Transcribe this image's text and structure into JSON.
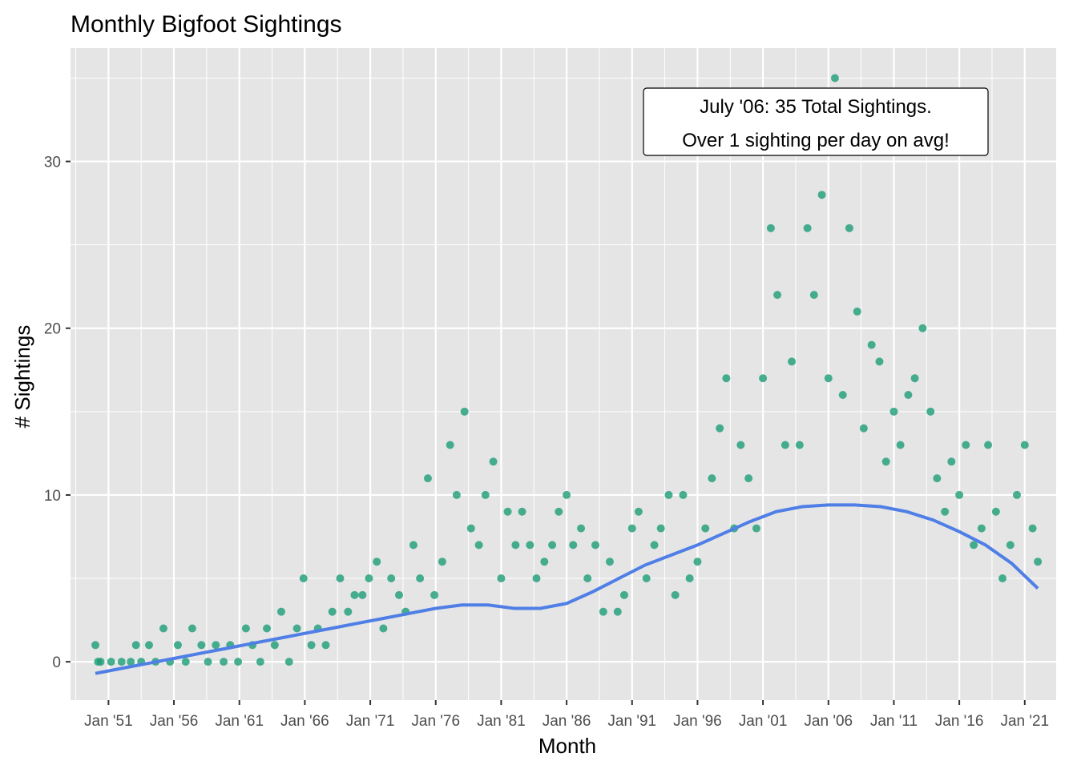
{
  "chart_data": {
    "type": "scatter",
    "title": "Monthly Bigfoot Sightings",
    "xlabel": "Month",
    "ylabel": "# Sightings",
    "xlim": [
      1948.1,
      2023.4
    ],
    "ylim": [
      -2.3,
      36.8
    ],
    "x_ticks": [
      {
        "x": 1951,
        "label": "Jan '51"
      },
      {
        "x": 1956,
        "label": "Jan '56"
      },
      {
        "x": 1961,
        "label": "Jan '61"
      },
      {
        "x": 1966,
        "label": "Jan '66"
      },
      {
        "x": 1971,
        "label": "Jan '71"
      },
      {
        "x": 1976,
        "label": "Jan '76"
      },
      {
        "x": 1981,
        "label": "Jan '81"
      },
      {
        "x": 1986,
        "label": "Jan '86"
      },
      {
        "x": 1991,
        "label": "Jan '91"
      },
      {
        "x": 1996,
        "label": "Jan '96"
      },
      {
        "x": 2001,
        "label": "Jan '01"
      },
      {
        "x": 2006,
        "label": "Jan '06"
      },
      {
        "x": 2011,
        "label": "Jan '11"
      },
      {
        "x": 2016,
        "label": "Jan '16"
      },
      {
        "x": 2021,
        "label": "Jan '21"
      }
    ],
    "y_ticks": [
      0,
      10,
      20,
      30
    ],
    "grid": true,
    "colors": {
      "points": "#1b9e77",
      "smooth": "#4f7fe6",
      "panel": "#e5e5e5",
      "grid": "#ffffff"
    },
    "annotation": {
      "lines": [
        "July '06: 35 Total Sightings.",
        "Over 1 sighting per day on avg!"
      ]
    },
    "smooth_line": {
      "x": [
        1950,
        1952,
        1954,
        1956,
        1958,
        1960,
        1962,
        1964,
        1966,
        1968,
        1970,
        1972,
        1974,
        1976,
        1978,
        1980,
        1982,
        1984,
        1986,
        1988,
        1990,
        1992,
        1994,
        1996,
        1998,
        2000,
        2002,
        2004,
        2006,
        2008,
        2010,
        2012,
        2014,
        2016,
        2018,
        2020,
        2022
      ],
      "y": [
        -0.7,
        -0.4,
        -0.1,
        0.2,
        0.5,
        0.8,
        1.1,
        1.4,
        1.7,
        2.0,
        2.3,
        2.6,
        2.9,
        3.2,
        3.4,
        3.4,
        3.2,
        3.2,
        3.5,
        4.2,
        5.0,
        5.8,
        6.4,
        7.0,
        7.7,
        8.4,
        9.0,
        9.3,
        9.4,
        9.4,
        9.3,
        9.0,
        8.5,
        7.8,
        7.0,
        5.9,
        4.4
      ]
    },
    "series": [
      {
        "x": [
          1950.0,
          1950.2,
          1950.4,
          1951.2,
          1952.0,
          1952.7,
          1953.1,
          1953.5,
          1954.1,
          1954.6,
          1955.2,
          1955.7,
          1956.3,
          1956.9,
          1957.4,
          1958.1,
          1958.6,
          1959.2,
          1959.8,
          1960.3,
          1960.9,
          1961.5,
          1962.0,
          1962.6,
          1963.1,
          1963.7,
          1964.2,
          1964.8,
          1965.4,
          1965.9,
          1966.5,
          1967.0,
          1967.6,
          1968.1,
          1968.7,
          1969.3,
          1969.8,
          1970.4,
          1970.9,
          1971.5,
          1972.0,
          1972.6,
          1973.2,
          1973.7,
          1974.3,
          1974.8,
          1975.4,
          1975.9,
          1976.5,
          1977.1,
          1977.6,
          1978.2,
          1978.7,
          1979.3,
          1979.8,
          1980.4,
          1981.0,
          1981.5,
          1982.1,
          1982.6,
          1983.2,
          1983.7,
          1984.3,
          1984.9,
          1985.4,
          1986.0,
          1986.5,
          1987.1,
          1987.6,
          1988.2,
          1988.8,
          1989.3,
          1989.9,
          1990.4,
          1991.0,
          1991.5,
          1992.1,
          1992.7,
          1993.2,
          1993.8,
          1994.3,
          1994.9,
          1995.4,
          1996.0,
          1996.6,
          1997.1,
          1997.7,
          1998.2,
          1998.8,
          1999.3,
          1999.9,
          2000.5,
          2001.0,
          2001.6,
          2002.1,
          2002.7,
          2003.2,
          2003.8,
          2004.4,
          2004.9,
          2005.5,
          2006.0,
          2006.5,
          2007.1,
          2007.6,
          2008.2,
          2008.7,
          2009.3,
          2009.9,
          2010.4,
          2011.0,
          2011.5,
          2012.1,
          2012.6,
          2013.2,
          2013.8,
          2014.3,
          2014.9,
          2015.4,
          2016.0,
          2016.5,
          2017.1,
          2017.7,
          2018.2,
          2018.8,
          2019.3,
          2019.9,
          2020.4,
          2021.0,
          2021.6,
          2022.0
        ],
        "y": [
          1,
          0,
          0,
          0,
          0,
          0,
          1,
          0,
          1,
          0,
          2,
          0,
          1,
          0,
          2,
          1,
          0,
          1,
          0,
          1,
          0,
          2,
          1,
          0,
          2,
          1,
          3,
          0,
          2,
          5,
          1,
          2,
          1,
          3,
          5,
          3,
          4,
          4,
          5,
          6,
          2,
          5,
          4,
          3,
          7,
          5,
          11,
          4,
          6,
          13,
          10,
          15,
          8,
          7,
          10,
          12,
          5,
          9,
          7,
          9,
          7,
          5,
          6,
          7,
          9,
          10,
          7,
          8,
          5,
          7,
          3,
          6,
          3,
          4,
          8,
          9,
          5,
          7,
          8,
          10,
          4,
          10,
          5,
          6,
          8,
          11,
          14,
          17,
          8,
          13,
          11,
          8,
          17,
          26,
          22,
          13,
          18,
          13,
          26,
          22,
          28,
          17,
          35,
          16,
          26,
          21,
          14,
          19,
          18,
          12,
          15,
          13,
          16,
          17,
          20,
          15,
          11,
          9,
          12,
          10,
          13,
          7,
          8,
          13,
          9,
          5,
          7,
          10,
          13,
          8,
          6
        ]
      }
    ]
  }
}
